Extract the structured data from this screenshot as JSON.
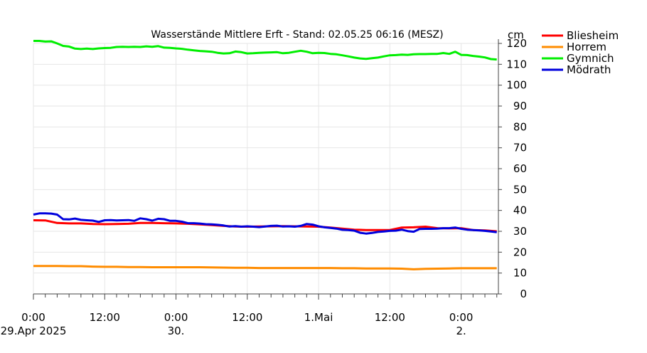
{
  "chart_data": {
    "type": "line",
    "title": "Wasserstände Mittlere Erft - Stand: 02.05.25 06:16 (MESZ)",
    "ylabel": "cm",
    "xlabel": "",
    "ylim": [
      0,
      120
    ],
    "y_ticks": [
      0,
      10,
      20,
      30,
      40,
      50,
      60,
      70,
      80,
      90,
      100,
      110,
      120
    ],
    "xlim_hours": [
      0,
      78.27
    ],
    "x_tick_labels": [
      {
        "hour": 0,
        "time": "0:00",
        "date": "29.Apr 2025"
      },
      {
        "hour": 12,
        "time": "12:00",
        "date": ""
      },
      {
        "hour": 24,
        "time": "0:00",
        "date": "30."
      },
      {
        "hour": 36,
        "time": "12:00",
        "date": ""
      },
      {
        "hour": 48,
        "time": "1.Mai",
        "date": ""
      },
      {
        "hour": 60,
        "time": "12:00",
        "date": ""
      },
      {
        "hour": 72,
        "time": "0:00",
        "date": "2."
      }
    ],
    "grid": true,
    "legend_position": "top-right",
    "series": [
      {
        "name": "Bliesheim",
        "color": "#ff0000",
        "points": [
          [
            0,
            35.3
          ],
          [
            2,
            35.2
          ],
          [
            4,
            34
          ],
          [
            6,
            33.8
          ],
          [
            8,
            33.8
          ],
          [
            10,
            33.5
          ],
          [
            12,
            33.4
          ],
          [
            14,
            33.5
          ],
          [
            16,
            33.6
          ],
          [
            18,
            34
          ],
          [
            20,
            34
          ],
          [
            22,
            33.9
          ],
          [
            24,
            33.8
          ],
          [
            26,
            33.6
          ],
          [
            28,
            33.3
          ],
          [
            30,
            33
          ],
          [
            32,
            32.6
          ],
          [
            34,
            32.3
          ],
          [
            36,
            32.2
          ],
          [
            38,
            32.3
          ],
          [
            40,
            32.4
          ],
          [
            42,
            32.5
          ],
          [
            44,
            32.4
          ],
          [
            46,
            32.3
          ],
          [
            48,
            32.2
          ],
          [
            50,
            31.8
          ],
          [
            52,
            31.3
          ],
          [
            54,
            30.8
          ],
          [
            56,
            30.6
          ],
          [
            58,
            30.6
          ],
          [
            60,
            30.6
          ],
          [
            62,
            31.8
          ],
          [
            64,
            31.9
          ],
          [
            66,
            32.2
          ],
          [
            68,
            31.5
          ],
          [
            70,
            31.4
          ],
          [
            72,
            31.5
          ],
          [
            74,
            30.6
          ],
          [
            76,
            30.4
          ],
          [
            78,
            30
          ]
        ]
      },
      {
        "name": "Horrem",
        "color": "#ff8c00",
        "points": [
          [
            0,
            13.4
          ],
          [
            2,
            13.4
          ],
          [
            4,
            13.4
          ],
          [
            6,
            13.3
          ],
          [
            8,
            13.3
          ],
          [
            10,
            13.1
          ],
          [
            12,
            13
          ],
          [
            14,
            13
          ],
          [
            16,
            12.9
          ],
          [
            18,
            12.9
          ],
          [
            20,
            12.8
          ],
          [
            22,
            12.8
          ],
          [
            24,
            12.8
          ],
          [
            26,
            12.8
          ],
          [
            28,
            12.8
          ],
          [
            30,
            12.7
          ],
          [
            32,
            12.6
          ],
          [
            34,
            12.5
          ],
          [
            36,
            12.5
          ],
          [
            38,
            12.4
          ],
          [
            40,
            12.4
          ],
          [
            42,
            12.4
          ],
          [
            44,
            12.4
          ],
          [
            46,
            12.4
          ],
          [
            48,
            12.4
          ],
          [
            50,
            12.4
          ],
          [
            52,
            12.3
          ],
          [
            54,
            12.3
          ],
          [
            56,
            12.2
          ],
          [
            58,
            12.2
          ],
          [
            60,
            12.2
          ],
          [
            62,
            12.1
          ],
          [
            64,
            11.8
          ],
          [
            66,
            12
          ],
          [
            68,
            12.1
          ],
          [
            70,
            12.2
          ],
          [
            72,
            12.3
          ],
          [
            74,
            12.3
          ],
          [
            76,
            12.3
          ],
          [
            78,
            12.3
          ]
        ]
      },
      {
        "name": "Gymnich",
        "color": "#00ee00",
        "points": [
          [
            0,
            121.2
          ],
          [
            1,
            121.2
          ],
          [
            2,
            120.9
          ],
          [
            3,
            121
          ],
          [
            4,
            120
          ],
          [
            5,
            118.8
          ],
          [
            6,
            118.5
          ],
          [
            7,
            117.5
          ],
          [
            8,
            117.3
          ],
          [
            9,
            117.5
          ],
          [
            10,
            117.3
          ],
          [
            11,
            117.6
          ],
          [
            12,
            117.8
          ],
          [
            13,
            117.9
          ],
          [
            14,
            118.3
          ],
          [
            15,
            118.4
          ],
          [
            16,
            118.3
          ],
          [
            17,
            118.4
          ],
          [
            18,
            118.3
          ],
          [
            19,
            118.6
          ],
          [
            20,
            118.4
          ],
          [
            21,
            118.7
          ],
          [
            22,
            118
          ],
          [
            23,
            117.9
          ],
          [
            24,
            117.6
          ],
          [
            25,
            117.4
          ],
          [
            26,
            117
          ],
          [
            27,
            116.7
          ],
          [
            28,
            116.4
          ],
          [
            29,
            116.2
          ],
          [
            30,
            116
          ],
          [
            31,
            115.5
          ],
          [
            32,
            115.2
          ],
          [
            33,
            115.3
          ],
          [
            34,
            116.1
          ],
          [
            35,
            115.8
          ],
          [
            36,
            115.2
          ],
          [
            37,
            115.3
          ],
          [
            38,
            115.5
          ],
          [
            39,
            115.6
          ],
          [
            40,
            115.7
          ],
          [
            41,
            115.8
          ],
          [
            42,
            115.3
          ],
          [
            43,
            115.5
          ],
          [
            44,
            116
          ],
          [
            45,
            116.5
          ],
          [
            46,
            116
          ],
          [
            47,
            115.3
          ],
          [
            48,
            115.5
          ],
          [
            49,
            115.4
          ],
          [
            50,
            115
          ],
          [
            51,
            114.8
          ],
          [
            52,
            114.3
          ],
          [
            53,
            113.8
          ],
          [
            54,
            113.2
          ],
          [
            55,
            112.8
          ],
          [
            56,
            112.6
          ],
          [
            57,
            112.9
          ],
          [
            58,
            113.2
          ],
          [
            59,
            113.8
          ],
          [
            60,
            114.3
          ],
          [
            61,
            114.4
          ],
          [
            62,
            114.6
          ],
          [
            63,
            114.5
          ],
          [
            64,
            114.8
          ],
          [
            65,
            114.9
          ],
          [
            66,
            114.9
          ],
          [
            67,
            115
          ],
          [
            68,
            115
          ],
          [
            69,
            115.4
          ],
          [
            70,
            115
          ],
          [
            71,
            116
          ],
          [
            72,
            114.5
          ],
          [
            73,
            114.4
          ],
          [
            74,
            114
          ],
          [
            75,
            113.7
          ],
          [
            76,
            113.3
          ],
          [
            77,
            112.5
          ],
          [
            78,
            112.3
          ]
        ]
      },
      {
        "name": "Mödrath",
        "color": "#0000dd",
        "points": [
          [
            0,
            38
          ],
          [
            1,
            38.6
          ],
          [
            2,
            38.6
          ],
          [
            3,
            38.5
          ],
          [
            4,
            38
          ],
          [
            5,
            35.8
          ],
          [
            6,
            35.7
          ],
          [
            7,
            36.1
          ],
          [
            8,
            35.5
          ],
          [
            9,
            35.3
          ],
          [
            10,
            35.1
          ],
          [
            11,
            34.5
          ],
          [
            12,
            35.3
          ],
          [
            13,
            35.4
          ],
          [
            14,
            35.2
          ],
          [
            15,
            35.3
          ],
          [
            16,
            35.4
          ],
          [
            17,
            35
          ],
          [
            18,
            36.2
          ],
          [
            19,
            35.8
          ],
          [
            20,
            35.1
          ],
          [
            21,
            36
          ],
          [
            22,
            35.8
          ],
          [
            23,
            35
          ],
          [
            24,
            35
          ],
          [
            25,
            34.6
          ],
          [
            26,
            33.9
          ],
          [
            27,
            33.9
          ],
          [
            28,
            33.7
          ],
          [
            29,
            33.4
          ],
          [
            30,
            33.3
          ],
          [
            31,
            33.1
          ],
          [
            32,
            32.8
          ],
          [
            33,
            32.3
          ],
          [
            34,
            32.5
          ],
          [
            35,
            32.2
          ],
          [
            36,
            32.4
          ],
          [
            37,
            32.2
          ],
          [
            38,
            32
          ],
          [
            39,
            32.3
          ],
          [
            40,
            32.6
          ],
          [
            41,
            32.7
          ],
          [
            42,
            32.3
          ],
          [
            43,
            32.4
          ],
          [
            44,
            32.2
          ],
          [
            45,
            32.6
          ],
          [
            46,
            33.5
          ],
          [
            47,
            33.2
          ],
          [
            48,
            32.4
          ],
          [
            49,
            31.9
          ],
          [
            50,
            31.6
          ],
          [
            51,
            31.3
          ],
          [
            52,
            30.7
          ],
          [
            53,
            30.6
          ],
          [
            54,
            30.3
          ],
          [
            55,
            29.3
          ],
          [
            56,
            28.9
          ],
          [
            57,
            29.2
          ],
          [
            58,
            29.7
          ],
          [
            59,
            29.9
          ],
          [
            60,
            30.2
          ],
          [
            61,
            30.3
          ],
          [
            62,
            30.8
          ],
          [
            63,
            30.1
          ],
          [
            64,
            29.8
          ],
          [
            65,
            31.1
          ],
          [
            66,
            31.2
          ],
          [
            67,
            31.2
          ],
          [
            68,
            31.3
          ],
          [
            69,
            31.5
          ],
          [
            70,
            31.5
          ],
          [
            71,
            31.8
          ],
          [
            72,
            31.2
          ],
          [
            73,
            30.8
          ],
          [
            74,
            30.6
          ],
          [
            75,
            30.4
          ],
          [
            76,
            30.2
          ],
          [
            77,
            29.9
          ],
          [
            78,
            29.6
          ]
        ]
      }
    ]
  }
}
